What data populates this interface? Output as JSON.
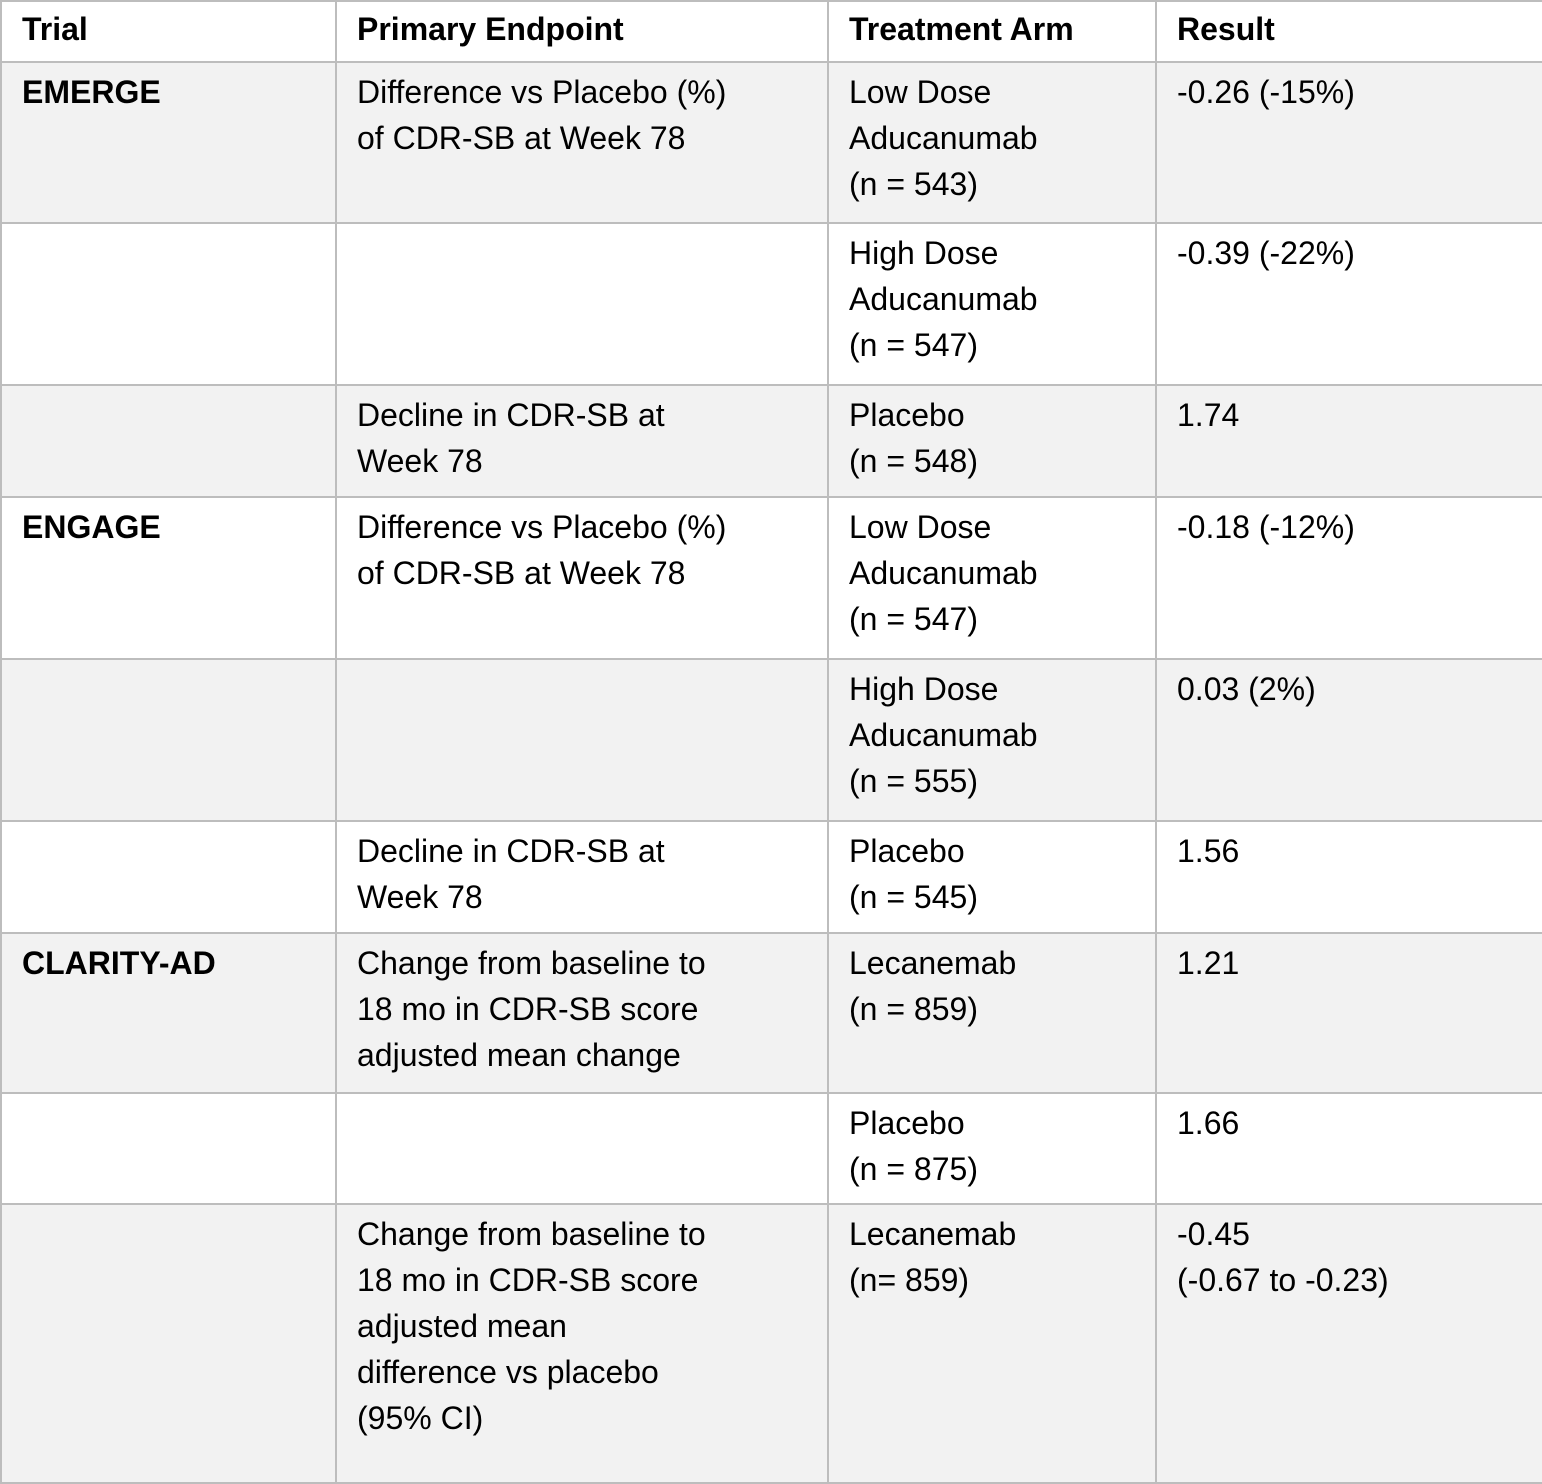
{
  "colors": {
    "row_shaded": "#f2f2f2",
    "row_plain": "#ffffff",
    "border_color": "#bdbdbd",
    "text_color": "#000000"
  },
  "chart_data": {
    "type": "table",
    "columns": [
      "Trial",
      "Primary Endpoint",
      "Treatment Arm",
      "Result"
    ],
    "rows": [
      [
        "EMERGE",
        "Difference vs Placebo (%)\nof CDR-SB at Week 78",
        "Low Dose\nAducanumab\n(n = 543)",
        "-0.26 (-15%)"
      ],
      [
        "",
        "",
        "High Dose\nAducanumab\n(n = 547)",
        "-0.39 (-22%)"
      ],
      [
        "",
        "Decline in CDR-SB at\nWeek 78",
        "Placebo\n(n = 548)",
        "1.74"
      ],
      [
        "ENGAGE",
        "Difference vs Placebo (%)\nof CDR-SB at Week 78",
        "Low Dose\nAducanumab\n(n = 547)",
        "-0.18 (-12%)"
      ],
      [
        "",
        "",
        "High Dose\nAducanumab\n(n = 555)",
        "0.03 (2%)"
      ],
      [
        "",
        "Decline in CDR-SB at\nWeek 78",
        "Placebo\n(n = 545)",
        "1.56"
      ],
      [
        "CLARITY-AD",
        "Change from baseline to\n18 mo in CDR-SB score\nadjusted mean change",
        "Lecanemab\n(n = 859)",
        "1.21"
      ],
      [
        "",
        "",
        "Placebo\n(n = 875)",
        "1.66"
      ],
      [
        "",
        "Change from baseline to\n18 mo in CDR-SB score\nadjusted mean\ndifference vs placebo\n(95% CI)",
        "Lecanemab\n(n= 859)",
        "-0.45\n(-0.67 to -0.23)"
      ]
    ]
  }
}
